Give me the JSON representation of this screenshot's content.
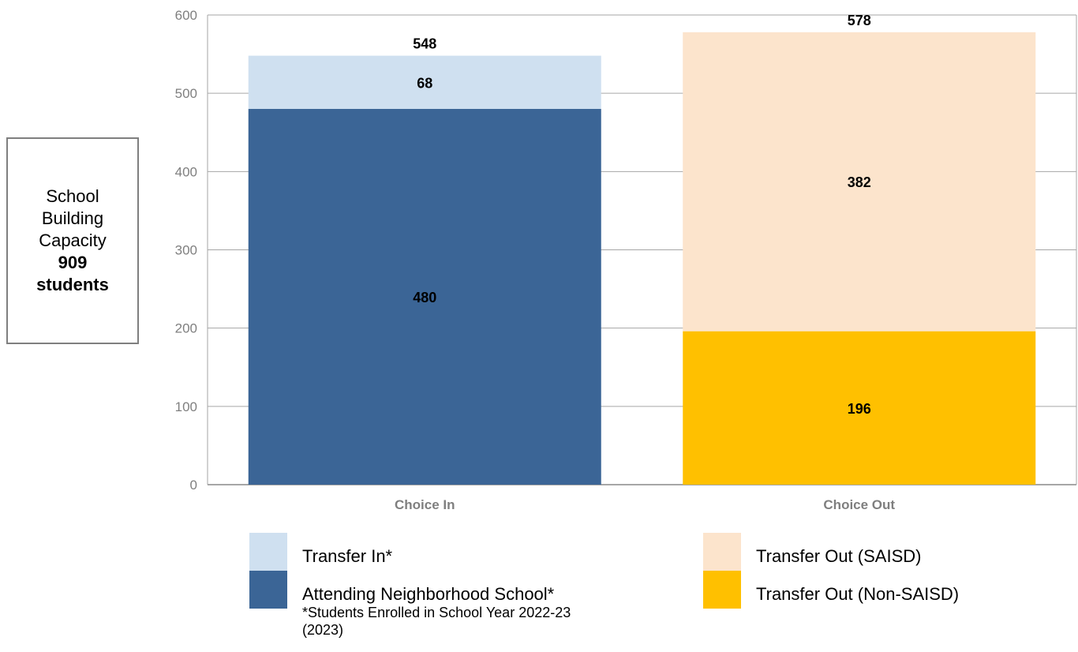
{
  "capacity_box": {
    "line1": "School",
    "line2": "Building",
    "line3": "Capacity",
    "value": "909",
    "unit": "students"
  },
  "legend": {
    "transfer_in": "Transfer In*",
    "attending": "Attending Neighborhood School*",
    "transfer_out_saisd": "Transfer Out (SAISD)",
    "transfer_out_non_saisd": "Transfer Out (Non-SAISD)"
  },
  "footnote": {
    "line1": "*Students Enrolled in School Year 2022-23",
    "line2": "(2023)"
  },
  "colors": {
    "attending": "#3b6596",
    "transfer_in": "#cfe0f0",
    "transfer_out_non_saisd": "#ffc000",
    "transfer_out_saisd": "#fce4cc",
    "axis_text": "#7f7f7f",
    "grid": "#a6a6a6"
  },
  "chart_data": {
    "type": "bar",
    "stacked": true,
    "categories": [
      "Choice In",
      "Choice Out"
    ],
    "ylim": [
      0,
      600
    ],
    "yticks": [
      0,
      100,
      200,
      300,
      400,
      500,
      600
    ],
    "grid": true,
    "stacks": [
      {
        "category": "Choice In",
        "total": 548,
        "segments": [
          {
            "series": "Attending Neighborhood School*",
            "value": 480,
            "color": "#3b6596"
          },
          {
            "series": "Transfer In*",
            "value": 68,
            "color": "#cfe0f0"
          }
        ]
      },
      {
        "category": "Choice Out",
        "total": 578,
        "segments": [
          {
            "series": "Transfer Out (Non-SAISD)",
            "value": 196,
            "color": "#ffc000"
          },
          {
            "series": "Transfer Out (SAISD)",
            "value": 382,
            "color": "#fce4cc"
          }
        ]
      }
    ]
  }
}
